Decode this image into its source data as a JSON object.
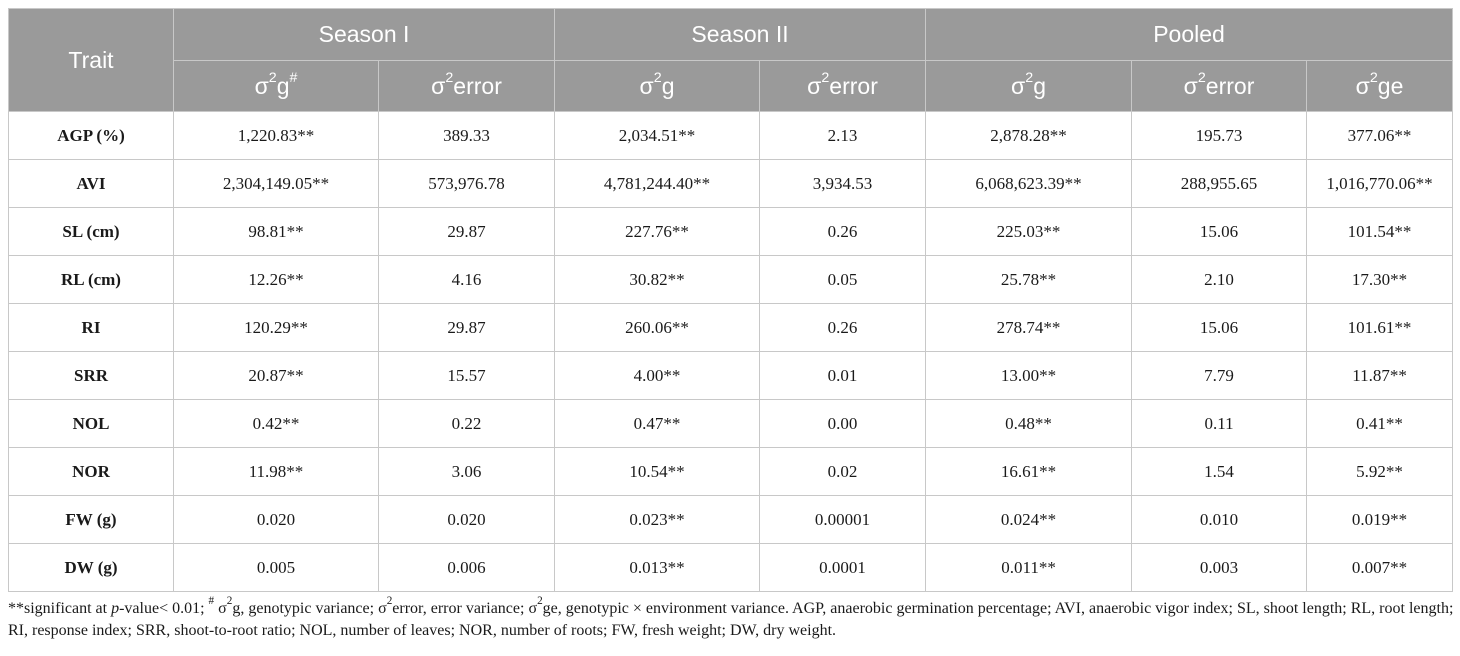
{
  "header": {
    "trait": "Trait",
    "groups": [
      "Season I",
      "Season II",
      "Pooled"
    ],
    "sub": [
      {
        "sigma": "σ",
        "sup": "2",
        "rest": "g",
        "mark": "#"
      },
      {
        "sigma": "σ",
        "sup": "2",
        "rest": "error",
        "mark": ""
      },
      {
        "sigma": "σ",
        "sup": "2",
        "rest": "g",
        "mark": ""
      },
      {
        "sigma": "σ",
        "sup": "2",
        "rest": "error",
        "mark": ""
      },
      {
        "sigma": "σ",
        "sup": "2",
        "rest": "g",
        "mark": ""
      },
      {
        "sigma": "σ",
        "sup": "2",
        "rest": "error",
        "mark": ""
      },
      {
        "sigma": "σ",
        "sup": "2",
        "rest": "ge",
        "mark": ""
      }
    ]
  },
  "rows": [
    {
      "trait": "AGP (%)",
      "cells": [
        "1,220.83**",
        "389.33",
        "2,034.51**",
        "2.13",
        "2,878.28**",
        "195.73",
        "377.06**"
      ]
    },
    {
      "trait": "AVI",
      "cells": [
        "2,304,149.05**",
        "573,976.78",
        "4,781,244.40**",
        "3,934.53",
        "6,068,623.39**",
        "288,955.65",
        "1,016,770.06**"
      ]
    },
    {
      "trait": "SL (cm)",
      "cells": [
        "98.81**",
        "29.87",
        "227.76**",
        "0.26",
        "225.03**",
        "15.06",
        "101.54**"
      ]
    },
    {
      "trait": "RL (cm)",
      "cells": [
        "12.26**",
        "4.16",
        "30.82**",
        "0.05",
        "25.78**",
        "2.10",
        "17.30**"
      ]
    },
    {
      "trait": "RI",
      "cells": [
        "120.29**",
        "29.87",
        "260.06**",
        "0.26",
        "278.74**",
        "15.06",
        "101.61**"
      ]
    },
    {
      "trait": "SRR",
      "cells": [
        "20.87**",
        "15.57",
        "4.00**",
        "0.01",
        "13.00**",
        "7.79",
        "11.87**"
      ]
    },
    {
      "trait": "NOL",
      "cells": [
        "0.42**",
        "0.22",
        "0.47**",
        "0.00",
        "0.48**",
        "0.11",
        "0.41**"
      ]
    },
    {
      "trait": "NOR",
      "cells": [
        "11.98**",
        "3.06",
        "10.54**",
        "0.02",
        "16.61**",
        "1.54",
        "5.92**"
      ]
    },
    {
      "trait": "FW (g)",
      "cells": [
        "0.020",
        "0.020",
        "0.023**",
        "0.00001",
        "0.024**",
        "0.010",
        "0.019**"
      ]
    },
    {
      "trait": "DW (g)",
      "cells": [
        "0.005",
        "0.006",
        "0.013**",
        "0.0001",
        "0.011**",
        "0.003",
        "0.007**"
      ]
    }
  ],
  "footnote": {
    "stars": "**",
    "a": "significant at ",
    "p": "p",
    "b": "-value< 0.01; ",
    "hash": "#",
    "c": " σ",
    "two1": "2",
    "d": "g, genotypic variance; σ",
    "two2": "2",
    "e": "error, error variance; σ",
    "two3": "2",
    "f": "ge, genotypic × environment variance. AGP, anaerobic germination percentage; AVI, anaerobic vigor index; SL, shoot length; RL, root length; RI, response index; SRR, shoot-to-root ratio; NOL, number of leaves; NOR, number of roots; FW, fresh weight; DW, dry weight."
  }
}
